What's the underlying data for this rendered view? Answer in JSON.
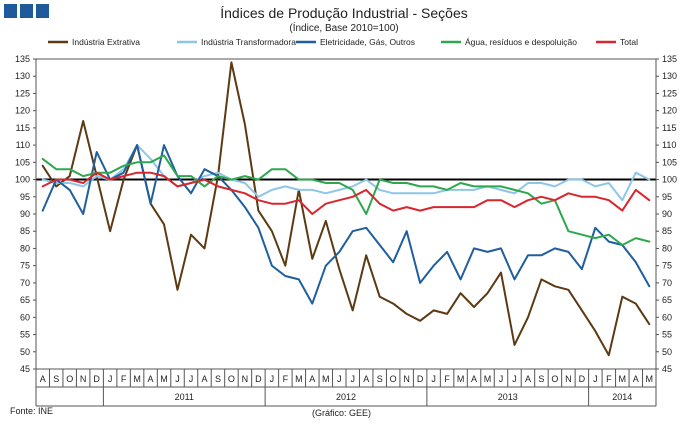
{
  "header": {
    "title": "Índices de Produção Industrial - Seções",
    "subtitle": "(Índice, Base 2010=100)",
    "logo": "ine-logo-icon"
  },
  "footer": {
    "source": "Fonte: INE",
    "credit": "(Gráfico: GEE)"
  },
  "chart_data": {
    "type": "line",
    "title": "Índices de Produção Industrial - Seções",
    "subtitle": "(Índice, Base 2010=100)",
    "ylim": [
      45,
      135
    ],
    "yticks": [
      45,
      50,
      55,
      60,
      65,
      70,
      75,
      80,
      85,
      90,
      95,
      100,
      105,
      110,
      115,
      120,
      125,
      130,
      135
    ],
    "reference_line": 100,
    "legend_position": "top",
    "categories": [
      "A",
      "S",
      "O",
      "N",
      "D",
      "J",
      "F",
      "M",
      "A",
      "M",
      "J",
      "J",
      "A",
      "S",
      "O",
      "N",
      "D",
      "J",
      "F",
      "M",
      "A",
      "M",
      "J",
      "J",
      "A",
      "S",
      "O",
      "N",
      "D",
      "J",
      "F",
      "M",
      "A",
      "M",
      "J",
      "J",
      "A",
      "S",
      "O",
      "N",
      "D",
      "J",
      "F",
      "M",
      "A",
      "M"
    ],
    "year_groups": [
      {
        "label": "",
        "start": 0,
        "end": 4
      },
      {
        "label": "2011",
        "start": 5,
        "end": 16
      },
      {
        "label": "2012",
        "start": 17,
        "end": 28
      },
      {
        "label": "2013",
        "start": 29,
        "end": 40
      },
      {
        "label": "2014",
        "start": 41,
        "end": 45
      }
    ],
    "series": [
      {
        "name": "Indústria Extrativa",
        "color": "#5c3a12",
        "values": [
          104,
          98,
          101,
          117,
          101,
          85,
          100,
          110,
          93,
          87,
          68,
          84,
          80,
          101,
          134,
          116,
          91,
          85,
          75,
          97,
          77,
          88,
          74,
          62,
          78,
          66,
          64,
          61,
          59,
          62,
          61,
          67,
          63,
          67,
          73,
          52,
          60,
          71,
          69,
          68,
          62,
          56,
          49,
          66,
          64,
          58
        ]
      },
      {
        "name": "Indústria Transformadora",
        "color": "#8ec6e8",
        "values": [
          100,
          99,
          99,
          98,
          101,
          100,
          103,
          110,
          106,
          101,
          98,
          99,
          101,
          102,
          100,
          99,
          95,
          97,
          98,
          97,
          97,
          96,
          97,
          98,
          100,
          97,
          96,
          96,
          96,
          96,
          97,
          97,
          97,
          98,
          97,
          96,
          99,
          99,
          98,
          100,
          100,
          98,
          99,
          94,
          102,
          100
        ]
      },
      {
        "name": "Eletricidade, Gás, Outros",
        "color": "#1f5f9e",
        "values": [
          91,
          100,
          97,
          90,
          108,
          100,
          102,
          110,
          93,
          110,
          101,
          96,
          103,
          101,
          97,
          92,
          86,
          75,
          72,
          71,
          64,
          75,
          79,
          85,
          86,
          81,
          76,
          85,
          70,
          75,
          79,
          71,
          80,
          79,
          80,
          71,
          78,
          78,
          80,
          79,
          74,
          86,
          82,
          81,
          76,
          69
        ]
      },
      {
        "name": "Água, resíduos e despoluição",
        "color": "#2ea84e",
        "values": [
          106,
          103,
          103,
          101,
          102,
          102,
          104,
          105,
          105,
          107,
          101,
          101,
          98,
          101,
          100,
          101,
          100,
          103,
          103,
          100,
          100,
          99,
          99,
          97,
          90,
          100,
          99,
          99,
          98,
          98,
          97,
          99,
          98,
          98,
          98,
          97,
          96,
          93,
          94,
          85,
          84,
          83,
          84,
          81,
          83,
          82
        ]
      },
      {
        "name": "Total",
        "color": "#d8262e",
        "values": [
          98,
          100,
          100,
          99,
          102,
          100,
          101,
          102,
          102,
          101,
          98,
          99,
          100,
          98,
          97,
          96,
          94,
          93,
          93,
          94,
          90,
          93,
          94,
          95,
          97,
          93,
          91,
          92,
          91,
          92,
          92,
          92,
          92,
          94,
          94,
          92,
          94,
          95,
          94,
          96,
          95,
          95,
          94,
          91,
          97,
          94
        ]
      }
    ]
  }
}
